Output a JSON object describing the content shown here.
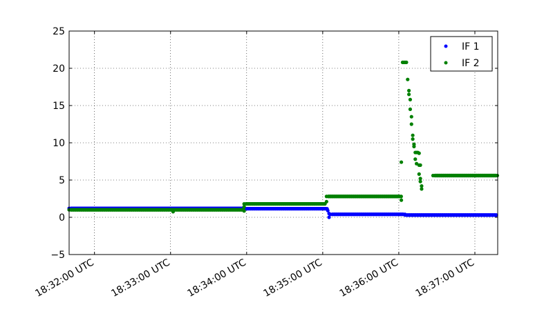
{
  "chart_data": {
    "type": "scatter",
    "title": "",
    "xlabel": "",
    "ylabel": "",
    "xlim": [
      "18:31:40",
      "18:37:18"
    ],
    "ylim": [
      -5,
      25
    ],
    "grid": true,
    "legend_position": "top-right",
    "x_tick_labels": [
      "18:32:00 UTC",
      "18:33:00 UTC",
      "18:34:00 UTC",
      "18:35:00 UTC",
      "18:36:00 UTC",
      "18:37:00 UTC"
    ],
    "x_ticks": [
      "18:32:00",
      "18:33:00",
      "18:34:00",
      "18:35:00",
      "18:36:00",
      "18:37:00"
    ],
    "y_ticks": [
      -5,
      0,
      5,
      10,
      15,
      20,
      25
    ],
    "y_tick_labels": [
      "−5",
      "0",
      "5",
      "10",
      "15",
      "20",
      "25"
    ],
    "series": [
      {
        "name": "IF 1",
        "color": "#0000ff",
        "segments": [
          {
            "from": "18:31:40",
            "to": "18:33:58",
            "value": 1.2
          },
          {
            "from": "18:33:58",
            "to": "18:35:04",
            "value": 1.15
          },
          {
            "from": "18:35:06",
            "to": "18:36:05",
            "value": 0.4
          },
          {
            "from": "18:36:05",
            "to": "18:37:18",
            "value": 0.3
          }
        ],
        "points": [
          {
            "t": "18:35:04",
            "v": 0.9
          },
          {
            "t": "18:35:05",
            "v": 0.0
          },
          {
            "t": "18:35:05",
            "v": 0.5
          }
        ]
      },
      {
        "name": "IF 2",
        "color": "#008000",
        "segments": [
          {
            "from": "18:31:40",
            "to": "18:33:58",
            "value": 1.0
          },
          {
            "from": "18:33:58",
            "to": "18:35:03",
            "value": 1.8
          },
          {
            "from": "18:35:03",
            "to": "18:36:02",
            "value": 2.8
          },
          {
            "from": "18:36:27",
            "to": "18:37:18",
            "value": 5.6
          }
        ],
        "points": [
          {
            "t": "18:33:02",
            "v": 0.75
          },
          {
            "t": "18:33:58",
            "v": 0.85
          },
          {
            "t": "18:33:58",
            "v": 1.4
          },
          {
            "t": "18:35:03",
            "v": 2.1
          },
          {
            "t": "18:36:02",
            "v": 2.3
          },
          {
            "t": "18:36:02",
            "v": 7.4
          },
          {
            "t": "18:36:03",
            "v": 20.8
          },
          {
            "t": "18:36:04",
            "v": 20.8
          },
          {
            "t": "18:36:05",
            "v": 20.8
          },
          {
            "t": "18:36:06",
            "v": 20.8
          },
          {
            "t": "18:36:07",
            "v": 18.5
          },
          {
            "t": "18:36:08",
            "v": 17.0
          },
          {
            "t": "18:36:08",
            "v": 16.5
          },
          {
            "t": "18:36:09",
            "v": 15.8
          },
          {
            "t": "18:36:09",
            "v": 14.5
          },
          {
            "t": "18:36:10",
            "v": 13.5
          },
          {
            "t": "18:36:10",
            "v": 12.5
          },
          {
            "t": "18:36:11",
            "v": 11.0
          },
          {
            "t": "18:36:11",
            "v": 10.5
          },
          {
            "t": "18:36:12",
            "v": 9.8
          },
          {
            "t": "18:36:12",
            "v": 9.5
          },
          {
            "t": "18:36:13",
            "v": 8.7
          },
          {
            "t": "18:36:14",
            "v": 8.7
          },
          {
            "t": "18:36:15",
            "v": 8.7
          },
          {
            "t": "18:36:16",
            "v": 8.6
          },
          {
            "t": "18:36:13",
            "v": 7.8
          },
          {
            "t": "18:36:14",
            "v": 7.2
          },
          {
            "t": "18:36:16",
            "v": 7.0
          },
          {
            "t": "18:36:17",
            "v": 7.0
          },
          {
            "t": "18:36:16",
            "v": 5.8
          },
          {
            "t": "18:36:17",
            "v": 5.2
          },
          {
            "t": "18:36:17",
            "v": 4.8
          },
          {
            "t": "18:36:18",
            "v": 4.2
          },
          {
            "t": "18:36:18",
            "v": 3.8
          }
        ]
      }
    ]
  }
}
